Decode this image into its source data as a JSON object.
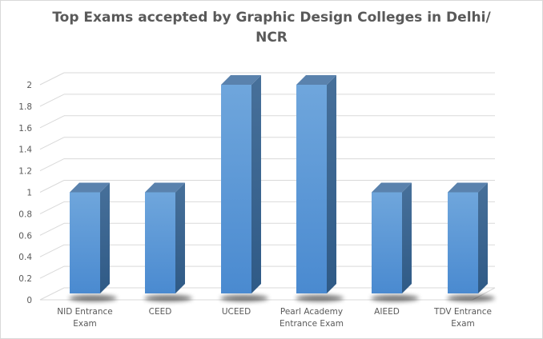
{
  "chart": {
    "title_line1": "Top Exams accepted by Graphic Design Colleges in Delhi/",
    "title_line2": "NCR"
  },
  "colors": {
    "bar_front": "#5b9bd5",
    "bar_side": "#3d6a94",
    "bar_top": "#5a82ad",
    "grid": "#d9d9d9",
    "text": "#595959"
  },
  "y_ticks": [
    "0",
    "0.2",
    "0.4",
    "0.6",
    "0.8",
    "1",
    "1.2",
    "1.4",
    "1.6",
    "1.8",
    "2"
  ],
  "x_labels": [
    {
      "line1": "NID Entrance",
      "line2": "Exam"
    },
    {
      "line1": "CEED",
      "line2": ""
    },
    {
      "line1": "UCEED",
      "line2": ""
    },
    {
      "line1": "Pearl Academy",
      "line2": "Entrance Exam"
    },
    {
      "line1": "AIEED",
      "line2": ""
    },
    {
      "line1": "TDV Entrance",
      "line2": "Exam"
    }
  ],
  "chart_data": {
    "type": "bar",
    "style": "3d-column",
    "title": "Top Exams accepted by Graphic Design Colleges in Delhi/NCR",
    "categories": [
      "NID Entrance Exam",
      "CEED",
      "UCEED",
      "Pearl Academy Entrance Exam",
      "AIEED",
      "TDV Entrance Exam"
    ],
    "values": [
      1,
      1,
      2,
      2,
      1,
      1
    ],
    "xlabel": "",
    "ylabel": "",
    "ylim": [
      0,
      2
    ],
    "yticks": [
      0,
      0.2,
      0.4,
      0.6,
      0.8,
      1,
      1.2,
      1.4,
      1.6,
      1.8,
      2
    ],
    "grid": true,
    "legend": null
  }
}
